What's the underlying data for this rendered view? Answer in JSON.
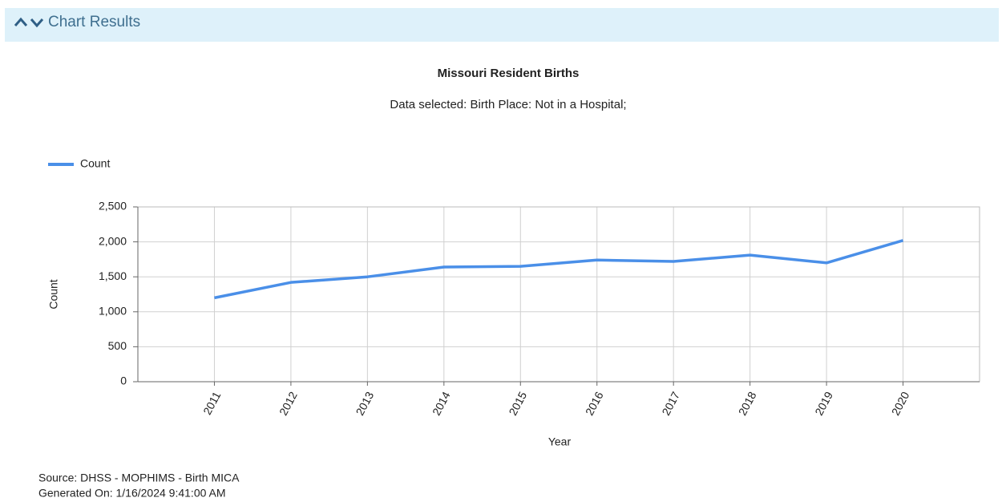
{
  "header": {
    "title": "Chart Results"
  },
  "chart_data": {
    "type": "line",
    "title": "Missouri Resident Births",
    "subtitle": "Data selected: Birth Place: Not in a Hospital;",
    "x_label": "Year",
    "y_label": "Count",
    "categories": [
      "2011",
      "2012",
      "2013",
      "2014",
      "2015",
      "2016",
      "2017",
      "2018",
      "2019",
      "2020"
    ],
    "series": [
      {
        "name": "Count",
        "color": "#4a8fe8",
        "values": [
          1200,
          1420,
          1500,
          1640,
          1650,
          1740,
          1720,
          1810,
          1700,
          2020
        ]
      }
    ],
    "ylim": [
      0,
      2500
    ],
    "yticks": [
      0,
      500,
      {
        "value": 1000,
        "label": "1,000"
      },
      {
        "value": 1500,
        "label": "1,500"
      },
      {
        "value": 2000,
        "label": "2,000"
      },
      {
        "value": 2500,
        "label": "2,500"
      }
    ],
    "grid": true,
    "legend": "top-left"
  },
  "footer": {
    "source": "Source: DHSS - MOPHIMS - Birth MICA",
    "generated": "Generated On: 1/16/2024 9:41:00 AM"
  }
}
